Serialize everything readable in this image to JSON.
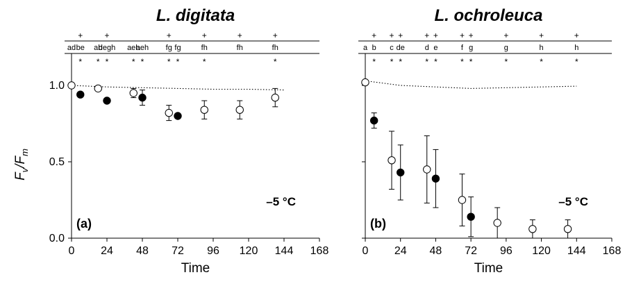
{
  "figure": {
    "ylabel_main": "F",
    "ylabel_sub1": "v",
    "ylabel_slash": "/F",
    "ylabel_sub2": "m"
  },
  "chart_data": [
    {
      "type": "scatter",
      "title": "L. digitata",
      "panel_label": "(a)",
      "temperature_label": "–5 °C",
      "xlabel": "Time",
      "ylabel": "Fv/Fm",
      "xlim": [
        0,
        168
      ],
      "ylim": [
        0.0,
        1.2
      ],
      "xticks": [
        0,
        24,
        48,
        72,
        96,
        120,
        144,
        168
      ],
      "yticks": [
        "0.0",
        "0.5",
        "1.0"
      ],
      "grid": false,
      "series": [
        {
          "marker": "open-circle",
          "x": [
            0,
            18,
            42,
            66,
            90,
            114,
            138
          ],
          "y": [
            1.0,
            0.98,
            0.95,
            0.82,
            0.84,
            0.84,
            0.92
          ],
          "err": [
            0.0,
            0.01,
            0.03,
            0.05,
            0.06,
            0.06,
            0.06
          ]
        },
        {
          "marker": "filled-circle",
          "x": [
            6,
            24,
            48,
            72
          ],
          "y": [
            0.94,
            0.9,
            0.92,
            0.8
          ],
          "err": [
            0.0,
            0.0,
            0.05,
            0.0
          ]
        }
      ],
      "reference_line": {
        "style": "dotted",
        "x": [
          0,
          24,
          48,
          72,
          96,
          120,
          144
        ],
        "y": [
          1.0,
          0.99,
          0.985,
          0.98,
          0.975,
          0.975,
          0.97
        ]
      },
      "significance_rows": {
        "plus": [
          6,
          24,
          66,
          90,
          114,
          138
        ],
        "letters": [
          {
            "x": 0,
            "text": "ad"
          },
          {
            "x": 6,
            "text": "be"
          },
          {
            "x": 18,
            "text": "ab"
          },
          {
            "x": 24,
            "text": "degh"
          },
          {
            "x": 42,
            "text": "aeh"
          },
          {
            "x": 48,
            "text": "aeh"
          },
          {
            "x": 66,
            "text": "fg"
          },
          {
            "x": 72,
            "text": "fg"
          },
          {
            "x": 90,
            "text": "fh"
          },
          {
            "x": 114,
            "text": "fh"
          },
          {
            "x": 138,
            "text": "fh"
          }
        ],
        "stars": [
          6,
          18,
          24,
          42,
          48,
          66,
          72,
          90,
          138
        ]
      }
    },
    {
      "type": "scatter",
      "title": "L. ochroleuca",
      "panel_label": "(b)",
      "temperature_label": "–5 °C",
      "xlabel": "Time",
      "ylabel": "Fv/Fm",
      "xlim": [
        0,
        168
      ],
      "ylim": [
        0.0,
        1.2
      ],
      "xticks": [
        0,
        24,
        48,
        72,
        96,
        120,
        144,
        168
      ],
      "yticks": [
        "0.0",
        "0.5",
        "1.0"
      ],
      "grid": false,
      "series": [
        {
          "marker": "open-circle",
          "x": [
            0,
            18,
            42,
            66,
            90,
            114,
            138
          ],
          "y": [
            1.02,
            0.51,
            0.45,
            0.25,
            0.1,
            0.06,
            0.06
          ],
          "err": [
            0.0,
            0.19,
            0.22,
            0.17,
            0.1,
            0.06,
            0.06
          ]
        },
        {
          "marker": "filled-circle",
          "x": [
            6,
            24,
            48,
            72
          ],
          "y": [
            0.77,
            0.43,
            0.39,
            0.14
          ],
          "err": [
            0.05,
            0.18,
            0.19,
            0.13
          ]
        }
      ],
      "reference_line": {
        "style": "dotted",
        "x": [
          0,
          24,
          48,
          72,
          96,
          120,
          144
        ],
        "y": [
          1.03,
          1.0,
          0.99,
          0.98,
          0.985,
          0.99,
          0.995
        ]
      },
      "significance_rows": {
        "plus": [
          6,
          18,
          24,
          42,
          48,
          66,
          72,
          96,
          120,
          144
        ],
        "letters": [
          {
            "x": 0,
            "text": "a"
          },
          {
            "x": 6,
            "text": "b"
          },
          {
            "x": 18,
            "text": "c"
          },
          {
            "x": 24,
            "text": "de"
          },
          {
            "x": 42,
            "text": "d"
          },
          {
            "x": 48,
            "text": "e"
          },
          {
            "x": 66,
            "text": "f"
          },
          {
            "x": 72,
            "text": "g"
          },
          {
            "x": 96,
            "text": "g"
          },
          {
            "x": 120,
            "text": "h"
          },
          {
            "x": 144,
            "text": "h"
          }
        ],
        "stars": [
          6,
          18,
          24,
          42,
          48,
          66,
          72,
          96,
          120,
          144
        ]
      }
    }
  ]
}
